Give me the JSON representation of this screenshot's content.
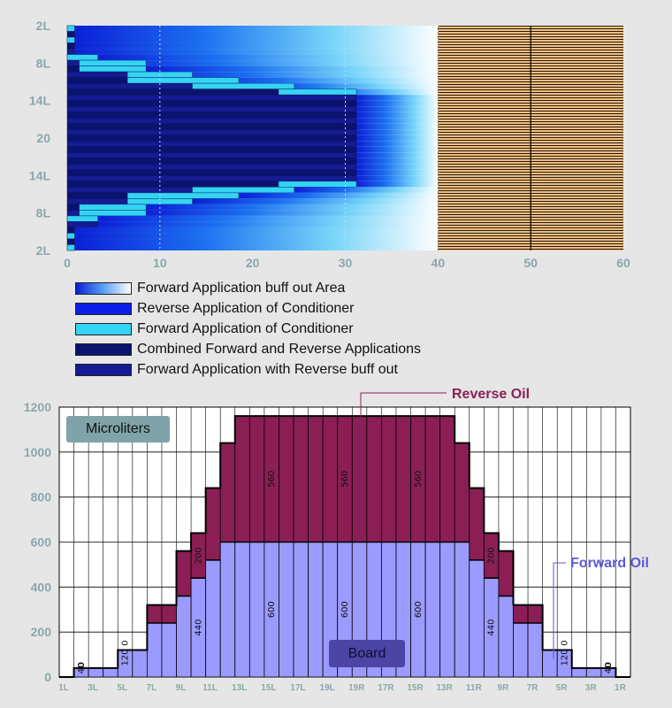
{
  "chart_data": [
    {
      "type": "heatmap",
      "description_note": "",
      "y_tick_labels": [
        "2L",
        "8L",
        "14L",
        "20",
        "14L",
        "8L",
        "2L"
      ],
      "x_ticks": [
        0,
        10,
        20,
        30,
        40,
        50,
        60
      ],
      "xlim": [
        0,
        60
      ],
      "boards": 39,
      "forward_buff_out_end": 40,
      "pin_deck_start": 40,
      "pin_deck_marker": 50,
      "forward_application": {
        "color": "#35d3f4",
        "rows": [
          {
            "board": 1,
            "start": 0,
            "end": 0.8
          },
          {
            "board": 3,
            "start": 0,
            "end": 0.8
          },
          {
            "board": 6,
            "start": 0,
            "end": 3.3
          },
          {
            "board": 7,
            "start": 1.3,
            "end": 8.5
          },
          {
            "board": 8,
            "start": 1.3,
            "end": 8.5
          },
          {
            "board": 9,
            "start": 6.5,
            "end": 13.5
          },
          {
            "board": 10,
            "start": 6.5,
            "end": 18.5
          },
          {
            "board": 11,
            "start": 13.5,
            "end": 24.5
          },
          {
            "board": 12,
            "start": 22.8,
            "end": 31.2
          },
          {
            "board": 28,
            "start": 22.8,
            "end": 31.2
          },
          {
            "board": 29,
            "start": 13.5,
            "end": 24.5
          },
          {
            "board": 30,
            "start": 6.5,
            "end": 18.5
          },
          {
            "board": 31,
            "start": 6.5,
            "end": 13.5
          },
          {
            "board": 32,
            "start": 1.3,
            "end": 8.5
          },
          {
            "board": 33,
            "start": 1.3,
            "end": 8.5
          },
          {
            "board": 34,
            "start": 0,
            "end": 3.3
          },
          {
            "board": 37,
            "start": 0,
            "end": 0.8
          },
          {
            "board": 39,
            "start": 0,
            "end": 0.8
          }
        ]
      },
      "dark_region_width": [
        0.8,
        0.8,
        0.8,
        0.8,
        0.8,
        3.3,
        3.3,
        8.5,
        8.5,
        13.5,
        18.5,
        24.5,
        31.2,
        31.2,
        31.2,
        31.2,
        31.2,
        31.2,
        31.2,
        31.2,
        31.2,
        31.2,
        31.2,
        31.2,
        31.2,
        31.2,
        31.2,
        31.2,
        24.5,
        18.5,
        13.5,
        8.5,
        8.5,
        3.3,
        3.3,
        0.8,
        0.8,
        0.8,
        0.8
      ],
      "legend": [
        {
          "label": "Forward Application buff out Area",
          "swatch": "gradient"
        },
        {
          "label": "Reverse Application of Conditioner",
          "color": "#0c1fe6"
        },
        {
          "label": "Forward Application of Conditioner",
          "color": "#35d3f4"
        },
        {
          "label": "Combined Forward and Reverse Applications",
          "color": "#0a1470"
        },
        {
          "label": "Forward Application with Reverse buff out",
          "color": "#141b93"
        }
      ]
    },
    {
      "type": "bar",
      "stacked": true,
      "unit_label": "Microliters",
      "x_label_box": "Board",
      "ylim": [
        0,
        1200
      ],
      "y_ticks": [
        0,
        200,
        400,
        600,
        800,
        1000,
        1200
      ],
      "categories": [
        "1L",
        "2L",
        "3L",
        "4L",
        "5L",
        "6L",
        "7L",
        "8L",
        "9L",
        "10L",
        "11L",
        "12L",
        "13L",
        "14L",
        "15L",
        "16L",
        "17L",
        "18L",
        "19L",
        "20",
        "19R",
        "18R",
        "17R",
        "16R",
        "15R",
        "14R",
        "13R",
        "12R",
        "11R",
        "10R",
        "9R",
        "8R",
        "7R",
        "6R",
        "5R",
        "4R",
        "3R",
        "2R",
        "1R"
      ],
      "x_tick_labels": [
        "1L",
        "3L",
        "5L",
        "7L",
        "9L",
        "11L",
        "13L",
        "15L",
        "17L",
        "19L",
        "19R",
        "17R",
        "15R",
        "13R",
        "11R",
        "9R",
        "7R",
        "5R",
        "3R",
        "1R"
      ],
      "series": [
        {
          "name": "Forward Oil",
          "color": "#9b9bff",
          "values": [
            0,
            40,
            40,
            40,
            120,
            120,
            240,
            240,
            360,
            440,
            520,
            600,
            600,
            600,
            600,
            600,
            600,
            600,
            600,
            600,
            600,
            600,
            600,
            600,
            600,
            600,
            600,
            600,
            520,
            440,
            360,
            240,
            240,
            120,
            120,
            40,
            40,
            40,
            0
          ]
        },
        {
          "name": "Reverse Oil",
          "color": "#8b1f55",
          "values": [
            0,
            0,
            0,
            0,
            0,
            0,
            80,
            80,
            200,
            200,
            320,
            440,
            560,
            560,
            560,
            560,
            560,
            560,
            560,
            560,
            560,
            560,
            560,
            560,
            560,
            560,
            560,
            440,
            320,
            200,
            200,
            80,
            80,
            0,
            0,
            0,
            0,
            0,
            0
          ]
        }
      ],
      "data_labels": [
        {
          "text": "40",
          "board": "2L"
        },
        {
          "text": "0",
          "board": "2L"
        },
        {
          "text": "120",
          "board": "5L"
        },
        {
          "text": "0",
          "board": "5L"
        },
        {
          "text": "440",
          "board": "10L"
        },
        {
          "text": "200",
          "board": "10L"
        },
        {
          "text": "600",
          "board": "15L"
        },
        {
          "text": "560",
          "board": "15L"
        },
        {
          "text": "600",
          "board": "20"
        },
        {
          "text": "560",
          "board": "20"
        },
        {
          "text": "600",
          "board": "15R"
        },
        {
          "text": "560",
          "board": "15R"
        },
        {
          "text": "440",
          "board": "10R"
        },
        {
          "text": "200",
          "board": "10R"
        },
        {
          "text": "120",
          "board": "5R"
        },
        {
          "text": "0",
          "board": "5R"
        },
        {
          "text": "40",
          "board": "2R"
        },
        {
          "text": "0",
          "board": "2R"
        }
      ]
    }
  ],
  "labels": {
    "microliters": "Microliters",
    "board": "Board",
    "reverse_oil": "Reverse Oil",
    "forward_oil": "Forward Oil"
  }
}
